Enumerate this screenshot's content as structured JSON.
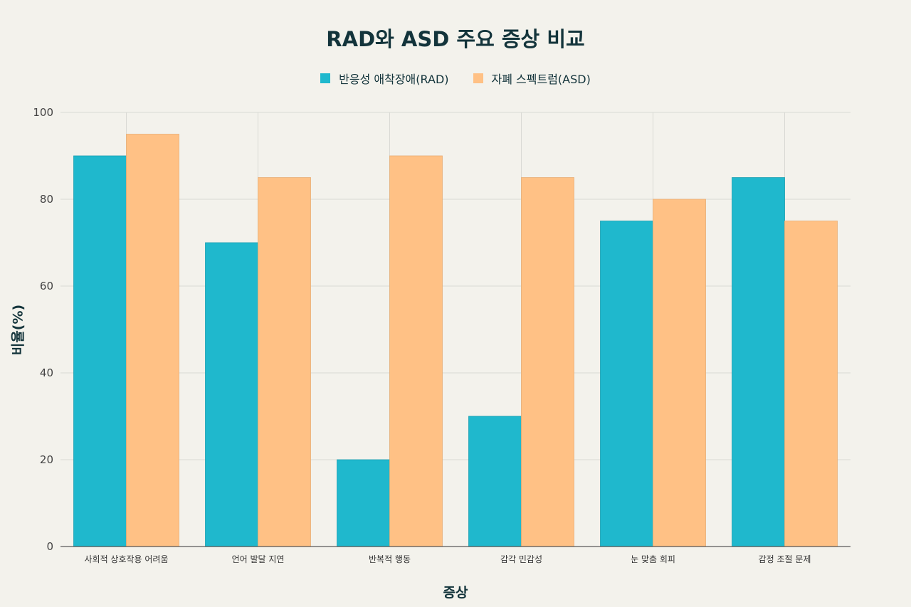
{
  "chart_data": {
    "type": "bar",
    "title": "RAD와 ASD 주요 증상 비교",
    "xlabel": "증상",
    "ylabel": "비율(%)",
    "ylim": [
      0,
      100
    ],
    "yticks": [
      0,
      20,
      40,
      60,
      80,
      100
    ],
    "categories": [
      "사회적 상호작용 어려움",
      "언어 발달 지연",
      "반복적 행동",
      "감각 민감성",
      "눈 맞춤 회피",
      "감정 조절 문제"
    ],
    "series": [
      {
        "name": "반응성 애착장애(RAD)",
        "values": [
          90,
          70,
          20,
          30,
          75,
          85
        ],
        "color": "#1fb8cd"
      },
      {
        "name": "자폐 스펙트럼(ASD)",
        "values": [
          95,
          85,
          90,
          85,
          80,
          75
        ],
        "color": "#ffc185"
      }
    ],
    "grid": true,
    "legend_position": "top-center"
  }
}
